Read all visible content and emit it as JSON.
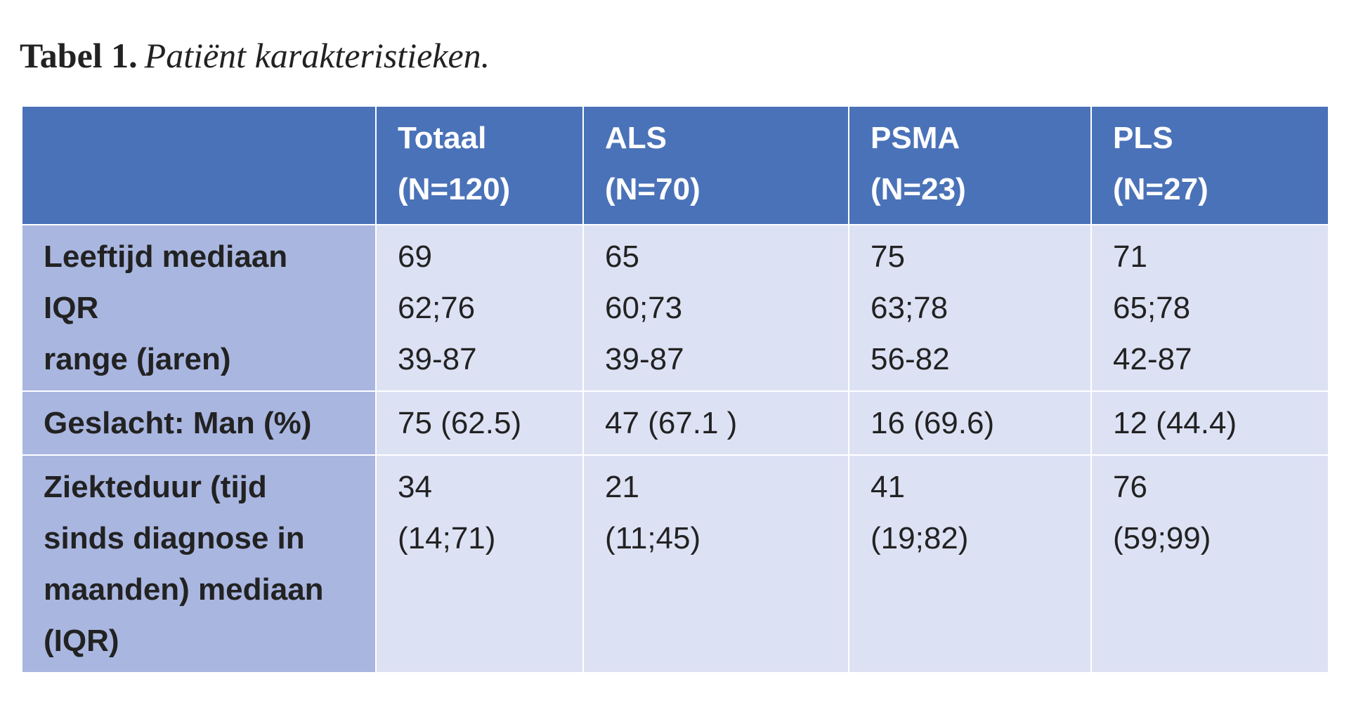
{
  "title": {
    "label": "Tabel 1.",
    "text": "Patiënt karakteristieken."
  },
  "table": {
    "header": [
      [
        "Totaal",
        "(N=120)"
      ],
      [
        "ALS",
        "(N=70)"
      ],
      [
        "PSMA",
        "(N=23)"
      ],
      [
        "PLS",
        "(N=27)"
      ]
    ],
    "rows": [
      {
        "label": [
          "Leeftijd mediaan",
          "IQR",
          "range (jaren)"
        ],
        "cells": [
          [
            "69",
            "62;76",
            "39-87"
          ],
          [
            "65",
            "60;73",
            "39-87"
          ],
          [
            "75",
            "63;78",
            "56-82"
          ],
          [
            "71",
            "65;78",
            "42-87"
          ]
        ]
      },
      {
        "label": [
          "Geslacht: Man (%)"
        ],
        "cells": [
          [
            "75 (62.5)"
          ],
          [
            "47 (67.1 )"
          ],
          [
            "16 (69.6)"
          ],
          [
            "12 (44.4)"
          ]
        ]
      },
      {
        "label": [
          "Ziekteduur (tijd sinds diagnose in maanden) mediaan (IQR)"
        ],
        "cells": [
          [
            "34",
            "(14;71)"
          ],
          [
            "21",
            "(11;45)"
          ],
          [
            "41",
            "(19;82)"
          ],
          [
            "76",
            "(59;99)"
          ]
        ]
      }
    ]
  }
}
